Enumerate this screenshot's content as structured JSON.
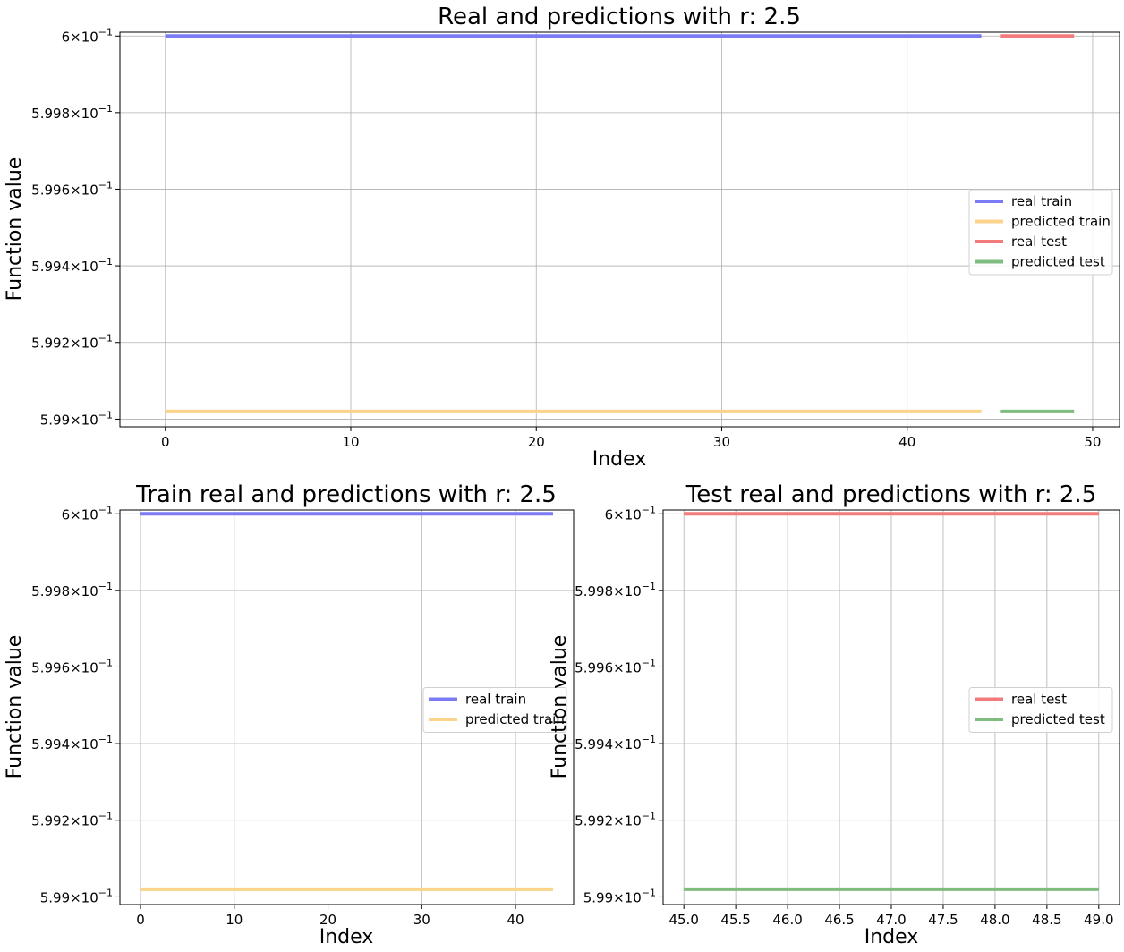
{
  "chart_data": [
    {
      "type": "line",
      "title": "Real and predictions with r: 2.5",
      "xlabel": "Index",
      "ylabel": "Function value",
      "xlim": [
        -2.45,
        51.45
      ],
      "ylim": [
        0.59898,
        0.60001
      ],
      "yscale": "log",
      "grid": true,
      "legend_position": "center-right",
      "xticks": [
        0,
        10,
        20,
        30,
        40,
        50
      ],
      "xtick_labels": [
        "0",
        "10",
        "20",
        "30",
        "40",
        "50"
      ],
      "yticks": [
        {
          "value": 0.6,
          "mantissa": "6",
          "base": "10",
          "exp": "−1"
        },
        {
          "value": 0.5998,
          "mantissa": "5.998",
          "base": "10",
          "exp": "−1"
        },
        {
          "value": 0.5996,
          "mantissa": "5.996",
          "base": "10",
          "exp": "−1"
        },
        {
          "value": 0.5994,
          "mantissa": "5.994",
          "base": "10",
          "exp": "−1"
        },
        {
          "value": 0.5992,
          "mantissa": "5.992",
          "base": "10",
          "exp": "−1"
        },
        {
          "value": 0.599,
          "mantissa": "5.99",
          "base": "10",
          "exp": "−1"
        }
      ],
      "series": [
        {
          "name": "real train",
          "color": "#7b7bf5",
          "x": [
            0,
            44
          ],
          "y": [
            0.6,
            0.6
          ]
        },
        {
          "name": "predicted train",
          "color": "#fbd38a",
          "x": [
            0,
            44
          ],
          "y": [
            0.59902,
            0.59902
          ]
        },
        {
          "name": "real test",
          "color": "#f47b7b",
          "x": [
            45,
            49
          ],
          "y": [
            0.6,
            0.6
          ]
        },
        {
          "name": "predicted test",
          "color": "#7fbd7f",
          "x": [
            45,
            49
          ],
          "y": [
            0.59902,
            0.59902
          ]
        }
      ]
    },
    {
      "type": "line",
      "title": "Train real and predictions with r: 2.5",
      "xlabel": "Index",
      "ylabel": "Function value",
      "xlim": [
        -2.2,
        46.2
      ],
      "ylim": [
        0.59898,
        0.60001
      ],
      "yscale": "log",
      "grid": true,
      "legend_position": "center-right",
      "xticks": [
        0,
        10,
        20,
        30,
        40
      ],
      "xtick_labels": [
        "0",
        "10",
        "20",
        "30",
        "40"
      ],
      "yticks": [
        {
          "value": 0.6,
          "mantissa": "6",
          "base": "10",
          "exp": "−1"
        },
        {
          "value": 0.5998,
          "mantissa": "5.998",
          "base": "10",
          "exp": "−1"
        },
        {
          "value": 0.5996,
          "mantissa": "5.996",
          "base": "10",
          "exp": "−1"
        },
        {
          "value": 0.5994,
          "mantissa": "5.994",
          "base": "10",
          "exp": "−1"
        },
        {
          "value": 0.5992,
          "mantissa": "5.992",
          "base": "10",
          "exp": "−1"
        },
        {
          "value": 0.599,
          "mantissa": "5.99",
          "base": "10",
          "exp": "−1"
        }
      ],
      "series": [
        {
          "name": "real train",
          "color": "#7b7bf5",
          "x": [
            0,
            44
          ],
          "y": [
            0.6,
            0.6
          ]
        },
        {
          "name": "predicted train",
          "color": "#fbd38a",
          "x": [
            0,
            44
          ],
          "y": [
            0.59902,
            0.59902
          ]
        }
      ]
    },
    {
      "type": "line",
      "title": "Test real and predictions with r: 2.5",
      "xlabel": "Index",
      "ylabel": "Function value",
      "xlim": [
        44.8,
        49.2
      ],
      "ylim": [
        0.59898,
        0.60001
      ],
      "yscale": "log",
      "grid": true,
      "legend_position": "center-right",
      "xticks": [
        45,
        45.5,
        46,
        46.5,
        47,
        47.5,
        48,
        48.5,
        49
      ],
      "xtick_labels": [
        "45.0",
        "45.5",
        "46.0",
        "46.5",
        "47.0",
        "47.5",
        "48.0",
        "48.5",
        "49.0"
      ],
      "yticks": [
        {
          "value": 0.6,
          "mantissa": "6",
          "base": "10",
          "exp": "−1"
        },
        {
          "value": 0.5998,
          "mantissa": "5.998",
          "base": "10",
          "exp": "−1"
        },
        {
          "value": 0.5996,
          "mantissa": "5.996",
          "base": "10",
          "exp": "−1"
        },
        {
          "value": 0.5994,
          "mantissa": "5.994",
          "base": "10",
          "exp": "−1"
        },
        {
          "value": 0.5992,
          "mantissa": "5.992",
          "base": "10",
          "exp": "−1"
        },
        {
          "value": 0.599,
          "mantissa": "5.99",
          "base": "10",
          "exp": "−1"
        }
      ],
      "series": [
        {
          "name": "real test",
          "color": "#f47b7b",
          "x": [
            45,
            49
          ],
          "y": [
            0.6,
            0.6
          ]
        },
        {
          "name": "predicted test",
          "color": "#7fbd7f",
          "x": [
            45,
            49
          ],
          "y": [
            0.59902,
            0.59902
          ]
        }
      ]
    }
  ]
}
